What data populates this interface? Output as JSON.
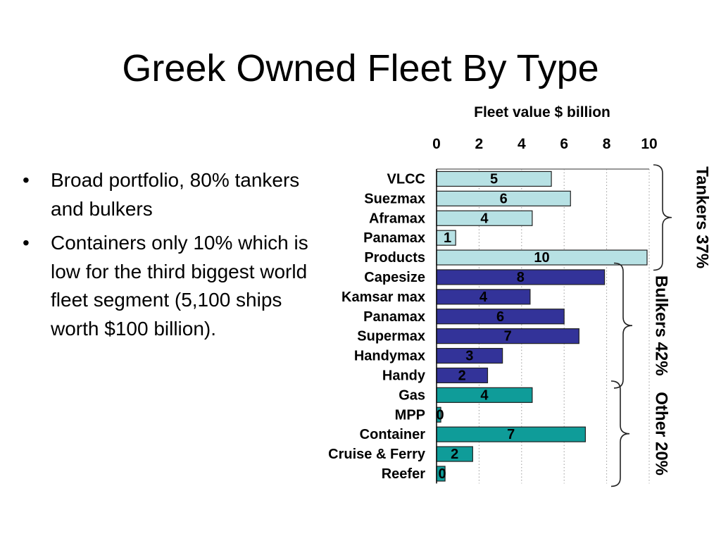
{
  "slide": {
    "title": "Greek Owned Fleet By Type",
    "bullets": [
      "Broad portfolio, 80% tankers and bulkers",
      "Containers only 10% which is low for the third biggest world fleet segment (5,100 ships worth $100 billion)."
    ]
  },
  "chart_data": {
    "type": "bar",
    "orientation": "horizontal",
    "title": "Fleet value $ billion",
    "xlim": [
      0,
      10
    ],
    "xticks": [
      0,
      2,
      4,
      6,
      8,
      10
    ],
    "grid": true,
    "axis_position": "top",
    "categories": [
      "VLCC",
      "Suezmax",
      "Aframax",
      "Panamax",
      "Products",
      "Capesize",
      "Kamsar max",
      "Panamax",
      "Supermax",
      "Handymax",
      "Handy",
      "Gas",
      "MPP",
      "Container",
      "Cruise & Ferry",
      "Reefer"
    ],
    "values": [
      5.4,
      6.3,
      4.5,
      0.9,
      9.9,
      7.9,
      4.4,
      6.0,
      6.7,
      3.1,
      2.4,
      4.5,
      0.2,
      7.0,
      1.7,
      0.4
    ],
    "value_labels": [
      "5",
      "6",
      "4",
      "1",
      "10",
      "8",
      "4",
      "6",
      "7",
      "3",
      "2",
      "4",
      "0",
      "7",
      "2",
      "0"
    ],
    "groups": [
      {
        "name": "Tankers 37%",
        "start": 0,
        "end": 4,
        "color": "#b7e1e4"
      },
      {
        "name": "Bulkers 42%",
        "start": 5,
        "end": 10,
        "color": "#333399"
      },
      {
        "name": "Other 20%",
        "start": 11,
        "end": 15,
        "color": "#0f9c99"
      }
    ]
  }
}
